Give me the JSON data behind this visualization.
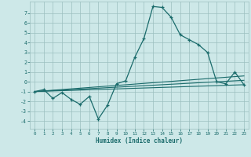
{
  "xlabel": "Humidex (Indice chaleur)",
  "xlim": [
    -0.5,
    23.5
  ],
  "ylim": [
    -4.8,
    8.2
  ],
  "yticks": [
    -4,
    -3,
    -2,
    -1,
    0,
    1,
    2,
    3,
    4,
    5,
    6,
    7
  ],
  "xticks": [
    0,
    1,
    2,
    3,
    4,
    5,
    6,
    7,
    8,
    9,
    10,
    11,
    12,
    13,
    14,
    15,
    16,
    17,
    18,
    19,
    20,
    21,
    22,
    23
  ],
  "bg_color": "#cde8e8",
  "grid_color": "#9bbfbf",
  "line_color": "#1a6b6b",
  "main_x": [
    0,
    1,
    2,
    3,
    4,
    5,
    6,
    7,
    8,
    9,
    10,
    11,
    12,
    13,
    14,
    15,
    16,
    17,
    18,
    19,
    20,
    21,
    22,
    23
  ],
  "main_y": [
    -1.0,
    -0.8,
    -1.7,
    -1.1,
    -1.8,
    -2.3,
    -1.5,
    -3.8,
    -2.4,
    -0.2,
    0.1,
    2.5,
    4.4,
    7.7,
    7.6,
    6.6,
    4.8,
    4.3,
    3.8,
    3.0,
    0.0,
    -0.2,
    1.0,
    -0.3
  ],
  "line1_x": [
    0,
    23
  ],
  "line1_y": [
    -1.0,
    0.6
  ],
  "line2_x": [
    0,
    23
  ],
  "line2_y": [
    -1.0,
    -0.3
  ],
  "line3_x": [
    0,
    23
  ],
  "line3_y": [
    -1.0,
    0.15
  ]
}
